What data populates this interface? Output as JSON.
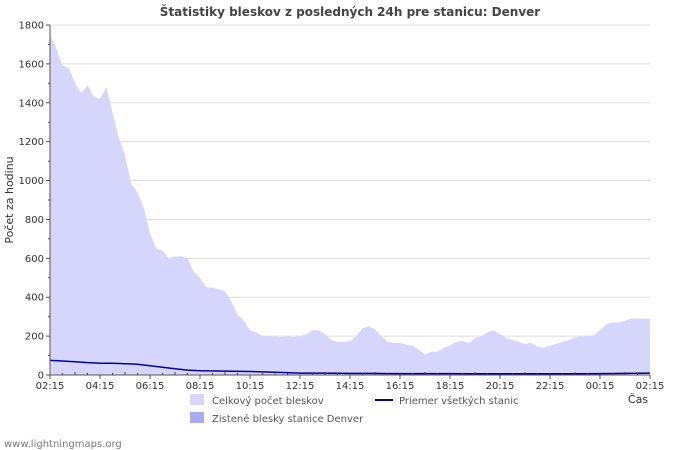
{
  "chart_data": {
    "type": "area",
    "title": "Štatistiky bleskov z posledných 24h pre stanicu: Denver",
    "ylabel": "Počet za hodinu",
    "xlabel": "Čas",
    "ylim": [
      0,
      1800
    ],
    "yticks": [
      0,
      200,
      400,
      600,
      800,
      1000,
      1200,
      1400,
      1600,
      1800
    ],
    "xlim": [
      0,
      24
    ],
    "x_tick_labels": [
      "02:15",
      "04:15",
      "06:15",
      "08:15",
      "10:15",
      "12:15",
      "14:15",
      "16:15",
      "18:15",
      "20:15",
      "22:15",
      "00:15",
      "02:15"
    ],
    "legend": [
      {
        "label": "Celkový počet bleskov",
        "kind": "area",
        "color": "#d6d6fc"
      },
      {
        "label": "Zistené blesky stanice Denver",
        "kind": "area",
        "color": "#a9a9f5"
      },
      {
        "label": "Priemer všetkých stanic",
        "kind": "line",
        "color": "#0000aa"
      }
    ],
    "series": [
      {
        "name": "Celkový počet bleskov",
        "color": "#d6d6fc",
        "x": [
          0,
          0.25,
          0.5,
          0.75,
          1.0,
          1.25,
          1.5,
          1.75,
          2.0,
          2.25,
          2.5,
          2.75,
          3.0,
          3.25,
          3.5,
          3.75,
          4.0,
          4.25,
          4.5,
          4.75,
          5.0,
          5.25,
          5.5,
          5.75,
          6.0,
          6.25,
          6.5,
          6.75,
          7.0,
          7.25,
          7.5,
          7.75,
          8.0,
          8.25,
          8.5,
          8.75,
          9.0,
          9.25,
          9.5,
          9.75,
          10.0,
          10.25,
          10.5,
          10.75,
          11.0,
          11.25,
          11.5,
          11.75,
          12.0,
          12.25,
          12.5,
          12.75,
          13.0,
          13.25,
          13.5,
          13.75,
          14.0,
          14.25,
          14.5,
          14.75,
          15.0,
          15.25,
          15.5,
          15.75,
          16.0,
          16.25,
          16.5,
          16.75,
          17.0,
          17.25,
          17.5,
          17.75,
          18.0,
          18.25,
          18.5,
          18.75,
          19.0,
          19.25,
          19.5,
          19.75,
          20.0,
          20.25,
          20.5,
          20.75,
          21.0,
          21.25,
          21.5,
          21.75,
          22.0,
          22.25,
          22.5,
          22.75,
          23.0,
          23.25,
          23.5,
          23.75,
          24.0
        ],
        "values": [
          1750,
          1680,
          1590,
          1580,
          1500,
          1450,
          1490,
          1430,
          1420,
          1480,
          1350,
          1220,
          1130,
          980,
          940,
          860,
          730,
          650,
          640,
          600,
          610,
          610,
          600,
          530,
          500,
          450,
          450,
          440,
          430,
          380,
          310,
          280,
          230,
          220,
          200,
          200,
          200,
          195,
          200,
          195,
          200,
          210,
          230,
          230,
          210,
          180,
          170,
          170,
          175,
          200,
          240,
          250,
          235,
          200,
          170,
          165,
          165,
          155,
          150,
          130,
          105,
          120,
          120,
          140,
          150,
          170,
          175,
          165,
          190,
          200,
          220,
          230,
          210,
          190,
          180,
          170,
          160,
          165,
          145,
          140,
          150,
          160,
          170,
          180,
          195,
          200,
          200,
          205,
          230,
          260,
          270,
          270,
          280,
          290,
          290,
          290,
          290
        ]
      },
      {
        "name": "Zistené blesky stanice Denver",
        "color": "#a9a9f5",
        "x": [
          0,
          2,
          4,
          6,
          8,
          10,
          12,
          14,
          16,
          18,
          20,
          22,
          24
        ],
        "values": [
          0,
          0,
          0,
          0,
          0,
          0,
          0,
          0,
          0,
          0,
          0,
          0,
          0
        ]
      },
      {
        "name": "Priemer všetkých stanic",
        "color": "#0000aa",
        "x": [
          0,
          0.5,
          1.0,
          1.5,
          2.0,
          2.5,
          3.0,
          3.5,
          4.0,
          4.5,
          5.0,
          5.5,
          6.0,
          7.0,
          8.0,
          9.0,
          10.0,
          11.0,
          12.0,
          13.0,
          14.0,
          15.0,
          16.0,
          17.0,
          18.0,
          19.0,
          20.0,
          21.0,
          22.0,
          23.0,
          24.0
        ],
        "values": [
          75,
          72,
          68,
          64,
          60,
          60,
          58,
          55,
          48,
          40,
          32,
          25,
          22,
          20,
          18,
          14,
          10,
          10,
          8,
          8,
          7,
          7,
          7,
          6,
          6,
          6,
          6,
          6,
          7,
          8,
          10
        ]
      }
    ]
  },
  "footer": {
    "text": "www.lightningmaps.org"
  }
}
